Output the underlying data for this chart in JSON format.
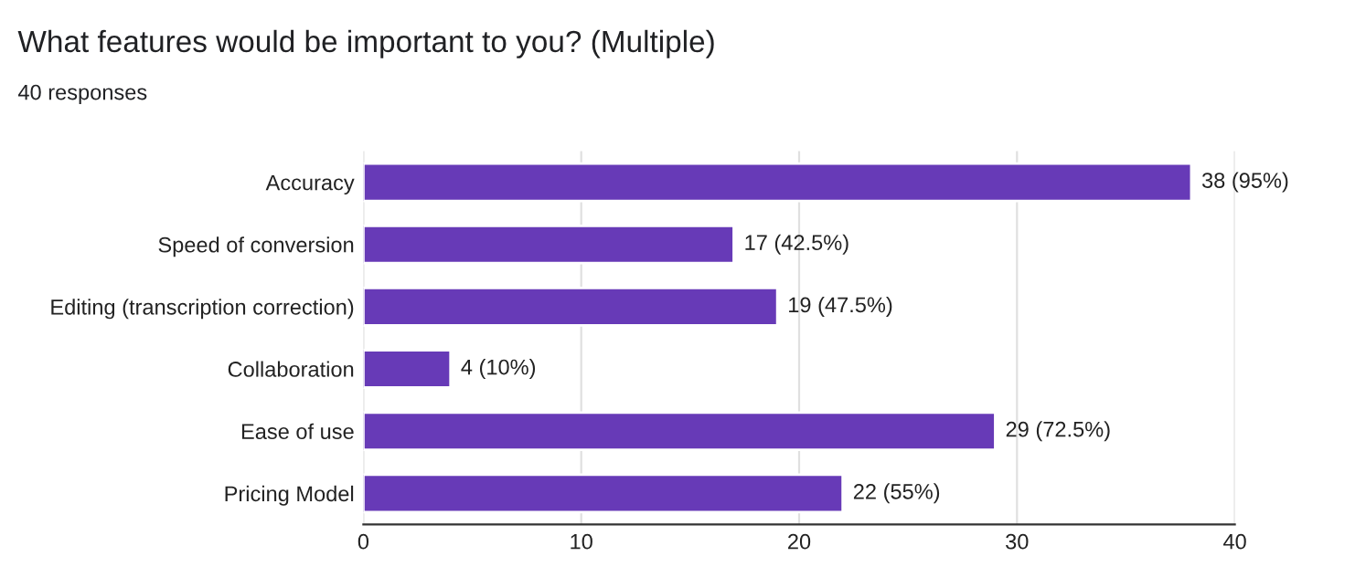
{
  "chart_data": {
    "type": "bar",
    "orientation": "horizontal",
    "title": "What features would be important to you? (Multiple)",
    "subtitle": "40 responses",
    "categories": [
      "Accuracy",
      "Speed of conversion",
      "Editing (transcription correction)",
      "Collaboration",
      "Ease of use",
      "Pricing Model"
    ],
    "values": [
      38,
      17,
      19,
      4,
      29,
      22
    ],
    "value_labels": [
      "38 (95%)",
      "17 (42.5%)",
      "19 (47.5%)",
      "4 (10%)",
      "29 (72.5%)",
      "22 (55%)"
    ],
    "color": "#673ab7",
    "xlim": [
      0,
      40
    ],
    "xticks": [
      0,
      10,
      20,
      30,
      40
    ],
    "grid": "x"
  }
}
